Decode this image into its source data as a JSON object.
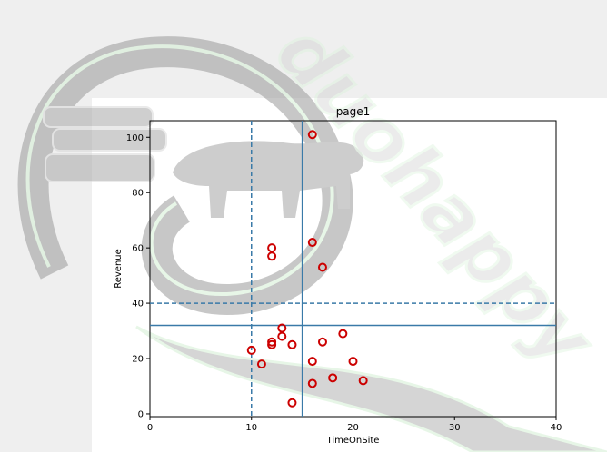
{
  "watermark": {
    "text": "duohappy",
    "description": "logo watermark: heart outline with books and cow silhouette"
  },
  "chart_data": {
    "type": "scatter",
    "title": "page1",
    "xlabel": "TimeOnSite",
    "ylabel": "Revenue",
    "xlim": [
      0,
      40
    ],
    "ylim": [
      -1,
      106
    ],
    "xticks": [
      0,
      10,
      20,
      30,
      40
    ],
    "yticks": [
      0,
      20,
      40,
      60,
      80,
      100
    ],
    "grid": false,
    "marker": "open-circle",
    "marker_color": "#cc0000",
    "line_color": "#3a7aa8",
    "points": [
      {
        "x": 16,
        "y": 101
      },
      {
        "x": 16,
        "y": 62
      },
      {
        "x": 12,
        "y": 60
      },
      {
        "x": 12,
        "y": 57
      },
      {
        "x": 17,
        "y": 53
      },
      {
        "x": 13,
        "y": 31
      },
      {
        "x": 19,
        "y": 29
      },
      {
        "x": 13,
        "y": 28
      },
      {
        "x": 12,
        "y": 26
      },
      {
        "x": 17,
        "y": 26
      },
      {
        "x": 12,
        "y": 25
      },
      {
        "x": 14,
        "y": 25
      },
      {
        "x": 10,
        "y": 23
      },
      {
        "x": 16,
        "y": 19
      },
      {
        "x": 20,
        "y": 19
      },
      {
        "x": 11,
        "y": 18
      },
      {
        "x": 18,
        "y": 13
      },
      {
        "x": 21,
        "y": 12
      },
      {
        "x": 16,
        "y": 11
      },
      {
        "x": 14,
        "y": 4
      }
    ],
    "reference_lines": [
      {
        "orientation": "vertical",
        "value": 10,
        "style": "dashed"
      },
      {
        "orientation": "vertical",
        "value": 15,
        "style": "solid"
      },
      {
        "orientation": "horizontal",
        "value": 40,
        "style": "dashed"
      },
      {
        "orientation": "horizontal",
        "value": 32,
        "style": "solid"
      }
    ]
  }
}
